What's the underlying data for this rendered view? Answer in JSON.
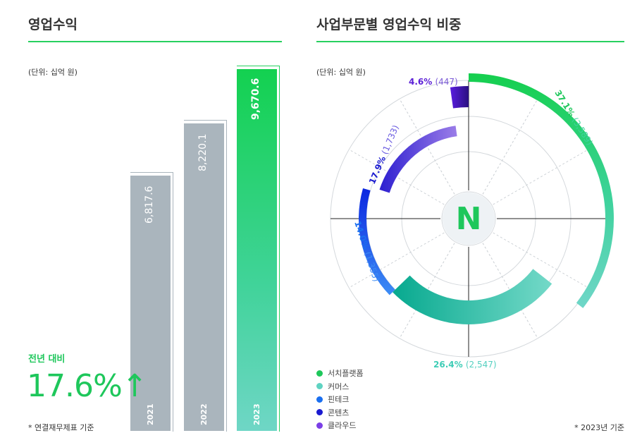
{
  "left": {
    "title": "영업수익",
    "unit": "(단위: 십억 원)",
    "growth_label": "전년 대비",
    "growth_value": "17.6%↑",
    "note": "* 연결재무제표 기준"
  },
  "right": {
    "title": "사업부문별 영업수익 비중",
    "unit": "(단위: 십억 원)",
    "note": "* 2023년 기준",
    "logo_letter": "N"
  },
  "colors": {
    "accent": "#1ec75b",
    "bar_gray": "#aab5bd",
    "search": "#1ec75b",
    "commerce": "#5fd3c2",
    "fintech": "#1a6ff0",
    "content": "#1a1ad0",
    "cloud": "#7b3fe6"
  },
  "chart_data": [
    {
      "type": "bar",
      "categories": [
        "2021",
        "2022",
        "2023"
      ],
      "values": [
        6817.6,
        8220.1,
        9670.6
      ],
      "labels": [
        "6,817.6",
        "8,220.1",
        "9,670.6"
      ],
      "title": "영업수익",
      "ylim": [
        0,
        9670.6
      ]
    },
    {
      "type": "pie",
      "title": "사업부문별 영업수익 비중",
      "series": [
        {
          "name": "서치플랫폼",
          "value": 3589,
          "pct_label": "37.1%",
          "val_label": "(3,589)",
          "color": "#1ec75b"
        },
        {
          "name": "커머스",
          "value": 2547,
          "pct_label": "26.4%",
          "val_label": "(2,547)",
          "color": "#5fd3c2"
        },
        {
          "name": "핀테크",
          "value": 1355,
          "pct_label": "14.0%",
          "val_label": "(1,355)",
          "color": "#1a6ff0"
        },
        {
          "name": "콘텐츠",
          "value": 1733,
          "pct_label": "17.9%",
          "val_label": "(1,733)",
          "color": "#1a1ad0"
        },
        {
          "name": "클라우드",
          "value": 447,
          "pct_label": "4.6%",
          "val_label": "(447)",
          "color": "#5b1fd6"
        }
      ]
    }
  ]
}
